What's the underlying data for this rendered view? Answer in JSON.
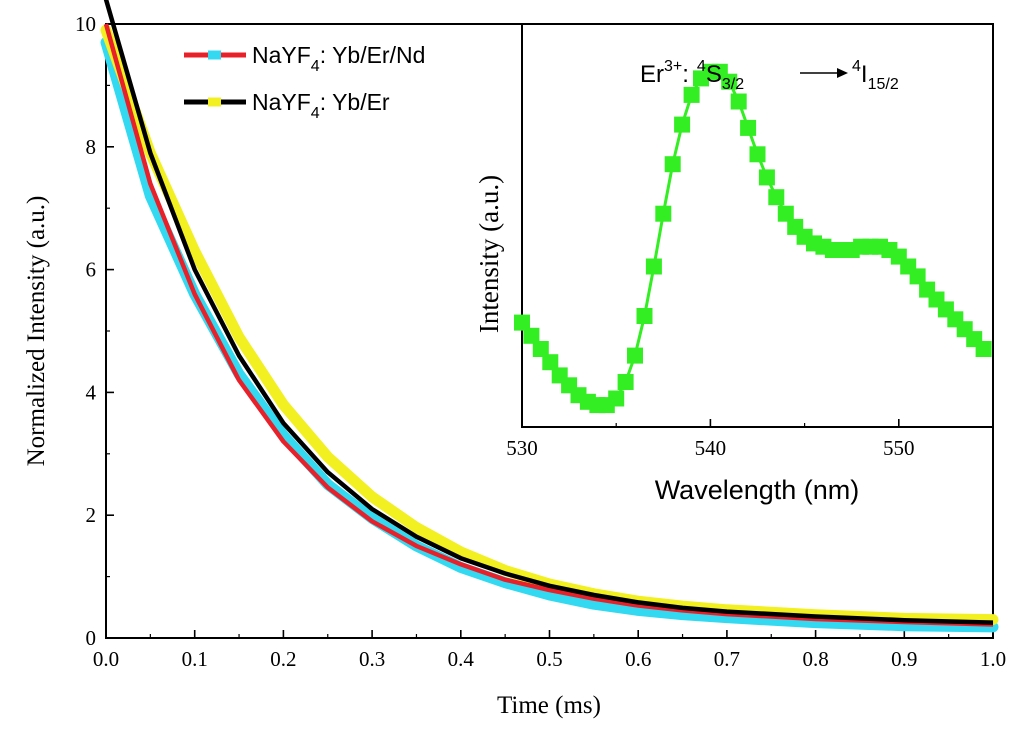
{
  "chart_data": [
    {
      "type": "line",
      "xlabel": "Time (ms)",
      "ylabel": "Normalized Intensity (a.u.)",
      "xlim": [
        0,
        1.0
      ],
      "ylim": [
        0,
        10
      ],
      "xticks": [
        "0.0",
        "0.1",
        "0.2",
        "0.3",
        "0.4",
        "0.5",
        "0.6",
        "0.7",
        "0.8",
        "0.9",
        "1.0"
      ],
      "yticks": [
        "0",
        "2",
        "4",
        "6",
        "8",
        "10"
      ],
      "grid": false,
      "legend_position": "top-center",
      "legend": [
        {
          "base": "NaYF",
          "sub": "4",
          "rest": ": Yb/Er/Nd",
          "line_color": "#e8202a",
          "marker_color": "#33d9f0"
        },
        {
          "base": "NaYF",
          "sub": "4",
          "rest": ": Yb/Er",
          "line_color": "#000000",
          "marker_color": "#f2f020"
        }
      ],
      "series": [
        {
          "kind": "data",
          "color": "#33d9f0",
          "x": [
            0.0,
            0.05,
            0.1,
            0.15,
            0.2,
            0.25,
            0.3,
            0.35,
            0.4,
            0.45,
            0.5,
            0.55,
            0.6,
            0.65,
            0.7,
            0.8,
            0.9,
            1.0
          ],
          "y": [
            9.7,
            7.2,
            5.6,
            4.3,
            3.3,
            2.5,
            1.95,
            1.5,
            1.15,
            0.9,
            0.7,
            0.55,
            0.45,
            0.38,
            0.33,
            0.25,
            0.2,
            0.18
          ]
        },
        {
          "kind": "data",
          "color": "#f2f020",
          "x": [
            0.0,
            0.05,
            0.1,
            0.15,
            0.2,
            0.25,
            0.3,
            0.35,
            0.4,
            0.45,
            0.5,
            0.55,
            0.6,
            0.65,
            0.7,
            0.8,
            0.9,
            1.0
          ],
          "y": [
            9.9,
            7.9,
            6.3,
            4.9,
            3.8,
            2.95,
            2.3,
            1.8,
            1.4,
            1.1,
            0.88,
            0.72,
            0.6,
            0.52,
            0.46,
            0.38,
            0.32,
            0.3
          ]
        },
        {
          "kind": "fit",
          "color": "#e8202a",
          "x": [
            0.0,
            0.05,
            0.1,
            0.15,
            0.2,
            0.25,
            0.3,
            0.35,
            0.4,
            0.45,
            0.5,
            0.55,
            0.6,
            0.65,
            0.7,
            0.8,
            0.9,
            1.0
          ],
          "y": [
            10.0,
            7.4,
            5.6,
            4.2,
            3.2,
            2.45,
            1.9,
            1.5,
            1.2,
            0.95,
            0.78,
            0.64,
            0.53,
            0.45,
            0.39,
            0.31,
            0.26,
            0.22
          ]
        },
        {
          "kind": "fit",
          "color": "#000000",
          "x": [
            0.0,
            0.05,
            0.1,
            0.15,
            0.2,
            0.25,
            0.3,
            0.35,
            0.4,
            0.45,
            0.5,
            0.55,
            0.6,
            0.65,
            0.7,
            0.8,
            0.9,
            1.0
          ],
          "y": [
            10.4,
            7.9,
            6.0,
            4.6,
            3.5,
            2.7,
            2.1,
            1.65,
            1.3,
            1.05,
            0.85,
            0.7,
            0.58,
            0.49,
            0.43,
            0.35,
            0.29,
            0.25
          ]
        }
      ]
    },
    {
      "type": "line",
      "xlabel": "Wavelength (nm)",
      "ylabel": "Intensity (a.u.)",
      "xlim": [
        530,
        555
      ],
      "ylim": [
        0,
        1.1
      ],
      "xticks": [
        "530",
        "540",
        "550"
      ],
      "annotation": {
        "ion": "Er",
        "ion_sup": "3+",
        "colon": ":",
        "lvl1_sup": "4",
        "lvl1": "S",
        "lvl1_sub": "3/2",
        "lvl2_sup": "4",
        "lvl2": "I",
        "lvl2_sub": "15/2"
      },
      "series": [
        {
          "color": "#33ee22",
          "x": [
            530.0,
            530.5,
            531.0,
            531.5,
            532.0,
            532.5,
            533.0,
            533.5,
            534.0,
            534.5,
            535.0,
            535.5,
            536.0,
            536.5,
            537.0,
            537.5,
            538.0,
            538.5,
            539.0,
            539.5,
            540.0,
            540.5,
            541.0,
            541.5,
            542.0,
            542.5,
            543.0,
            543.5,
            544.0,
            544.5,
            545.0,
            545.5,
            546.0,
            546.5,
            547.0,
            547.5,
            548.0,
            548.5,
            549.0,
            549.5,
            550.0,
            550.5,
            551.0,
            551.5,
            552.0,
            552.5,
            553.0,
            553.5,
            554.0,
            554.5
          ],
          "y": [
            0.28,
            0.24,
            0.2,
            0.16,
            0.12,
            0.09,
            0.06,
            0.04,
            0.03,
            0.03,
            0.05,
            0.1,
            0.18,
            0.3,
            0.45,
            0.61,
            0.76,
            0.88,
            0.97,
            1.02,
            1.04,
            1.04,
            1.01,
            0.95,
            0.87,
            0.79,
            0.72,
            0.66,
            0.61,
            0.57,
            0.54,
            0.52,
            0.51,
            0.5,
            0.5,
            0.5,
            0.51,
            0.51,
            0.51,
            0.5,
            0.48,
            0.45,
            0.42,
            0.38,
            0.35,
            0.32,
            0.29,
            0.26,
            0.23,
            0.2
          ]
        }
      ]
    }
  ]
}
